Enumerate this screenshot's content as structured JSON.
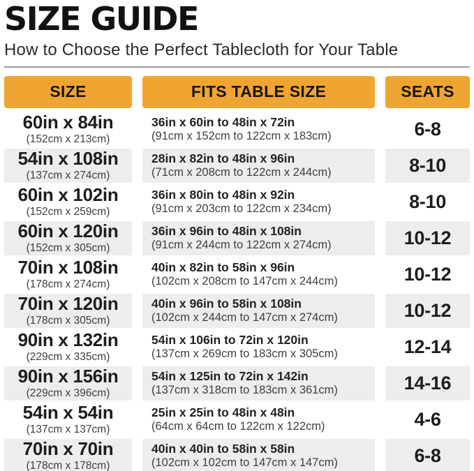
{
  "header": {
    "title": "SIZE GUIDE",
    "subtitle": "How to Choose the Perfect Tablecloth for Your Table"
  },
  "table": {
    "columns": [
      "SIZE",
      "FITS TABLE SIZE",
      "SEATS"
    ],
    "rows": [
      {
        "size_in": "60in x 84in",
        "size_cm": "(152cm x 213cm)",
        "fits_in": "36in x 60in to 48in x 72in",
        "fits_cm": "(91cm x 152cm to 122cm x 183cm)",
        "seats": "6-8"
      },
      {
        "size_in": "54in x 108in",
        "size_cm": "(137cm x 274cm)",
        "fits_in": "28in x 82in to 48in x 96in",
        "fits_cm": "(71cm x 208cm to 122cm x 244cm)",
        "seats": "8-10"
      },
      {
        "size_in": "60in x 102in",
        "size_cm": "(152cm x 259cm)",
        "fits_in": "36in x 80in to 48in x 92in",
        "fits_cm": "(91cm x 203cm to 122cm x 234cm)",
        "seats": "8-10"
      },
      {
        "size_in": "60in x 120in",
        "size_cm": "(152cm x 305cm)",
        "fits_in": "36in x 96in to 48in x 108in",
        "fits_cm": "(91cm x 244cm to 122cm x 274cm)",
        "seats": "10-12"
      },
      {
        "size_in": "70in x 108in",
        "size_cm": "(178cm x 274cm)",
        "fits_in": "40in x 82in to 58in x 96in",
        "fits_cm": "(102cm x 208cm to 147cm x 244cm)",
        "seats": "10-12"
      },
      {
        "size_in": "70in x 120in",
        "size_cm": "(178cm x 305cm)",
        "fits_in": "40in x 96in to 58in x 108in",
        "fits_cm": "(102cm x 244cm to 147cm x 274cm)",
        "seats": "10-12"
      },
      {
        "size_in": "90in x 132in",
        "size_cm": "(229cm x 335cm)",
        "fits_in": "54in x 106in to 72in x 120in",
        "fits_cm": "(137cm x 269cm to 183cm x 305cm)",
        "seats": "12-14"
      },
      {
        "size_in": "90in x 156in",
        "size_cm": "(229cm x 396cm)",
        "fits_in": "54in x 125in to 72in x 142in",
        "fits_cm": "(137cm x 318cm to 183cm x 361cm)",
        "seats": "14-16"
      },
      {
        "size_in": "54in x 54in",
        "size_cm": "(137cm x 137cm)",
        "fits_in": "25in x 25in to 48in x 48in",
        "fits_cm": "(64cm x 64cm to 122cm x 122cm)",
        "seats": "4-6"
      },
      {
        "size_in": "70in x 70in",
        "size_cm": "(178cm x 178cm)",
        "fits_in": "40in x 40in to 58in x 58in",
        "fits_cm": "(102cm x 102cm to 147cm x 147cm)",
        "seats": "6-8"
      }
    ]
  },
  "colors": {
    "accent_orange": "#F0A532",
    "row_alt_gray": "#EDEDED",
    "text_dark": "#1d1d1d",
    "text_sub": "#3e3e3e"
  }
}
